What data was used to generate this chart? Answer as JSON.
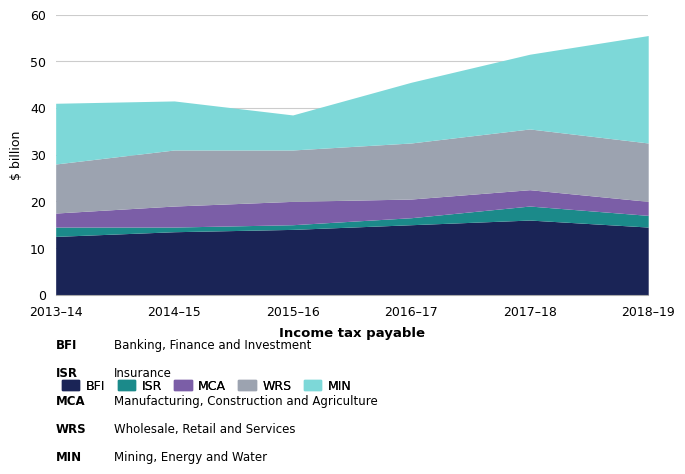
{
  "years": [
    "2013–14",
    "2014–15",
    "2015–16",
    "2016–17",
    "2017–18",
    "2018–19"
  ],
  "series": {
    "BFI": [
      12.5,
      13.5,
      14.0,
      15.0,
      16.0,
      14.5
    ],
    "ISR": [
      2.0,
      1.0,
      1.0,
      1.5,
      3.0,
      2.5
    ],
    "MCA": [
      3.0,
      4.5,
      5.0,
      4.0,
      3.5,
      3.0
    ],
    "WRS": [
      10.5,
      12.0,
      11.0,
      12.0,
      13.0,
      12.5
    ],
    "MIN": [
      13.0,
      10.5,
      7.5,
      13.0,
      16.0,
      23.0
    ]
  },
  "colors": {
    "BFI": "#1a2456",
    "ISR": "#1b8a8a",
    "MCA": "#7b5ea7",
    "WRS": "#9ca3b0",
    "MIN": "#7dd8d8"
  },
  "ylabel": "$ billion",
  "xlabel": "Income tax payable",
  "ylim": [
    0,
    60
  ],
  "yticks": [
    0,
    10,
    20,
    30,
    40,
    50,
    60
  ],
  "legend_labels": {
    "BFI": "Banking, Finance and Investment",
    "ISR": "Insurance",
    "MCA": "Manufacturing, Construction and Agriculture",
    "WRS": "Wholesale, Retail and Services",
    "MIN": "Mining, Energy and Water"
  },
  "bg_color": "#ffffff",
  "grid_color": "#cccccc",
  "series_order": [
    "BFI",
    "ISR",
    "MCA",
    "WRS",
    "MIN"
  ]
}
